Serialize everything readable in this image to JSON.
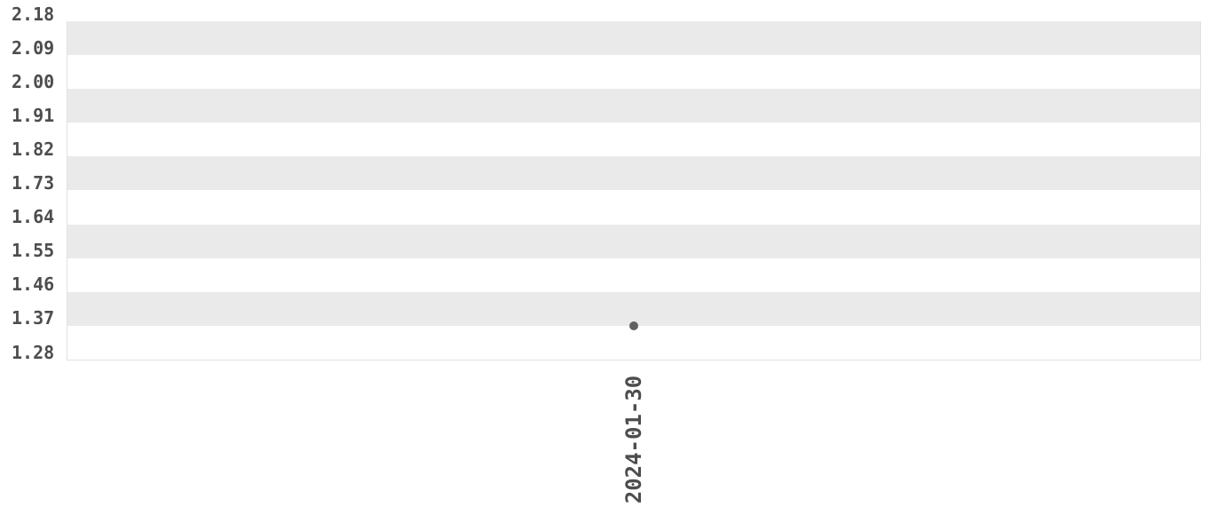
{
  "chart_data": {
    "type": "scatter",
    "title": "",
    "xlabel": "",
    "ylabel": "",
    "x": [
      "2024-01-30"
    ],
    "values": [
      1.37
    ],
    "ylim": [
      1.28,
      2.18
    ],
    "y_tick_labels": [
      "2.18",
      "2.09",
      "2.00",
      "1.91",
      "1.82",
      "1.73",
      "1.64",
      "1.55",
      "1.46",
      "1.37",
      "1.28"
    ],
    "y_tick_values": [
      2.18,
      2.09,
      2.0,
      1.91,
      1.82,
      1.73,
      1.64,
      1.55,
      1.46,
      1.37,
      1.28
    ],
    "x_tick_labels": [
      "2024-01-30"
    ],
    "grid": "alternating-horizontal-bands",
    "legend": "none",
    "colors": {
      "band": "#eaeaea",
      "band_alt": "#ffffff",
      "point": "#616161",
      "label": "#4d4d4d",
      "border": "#e1e1e1",
      "background": "#ffffff"
    }
  }
}
